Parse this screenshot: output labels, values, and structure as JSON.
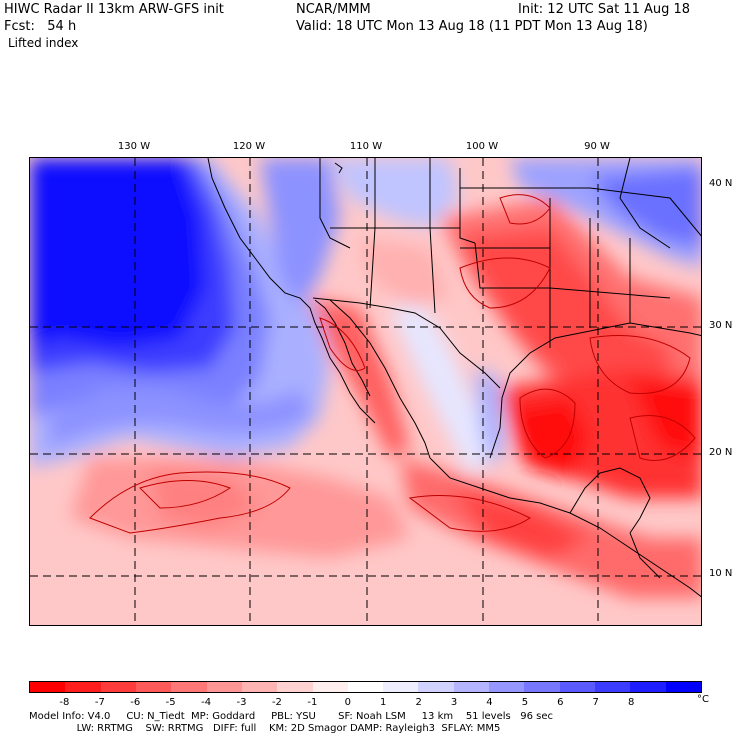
{
  "header": {
    "line1_left": "HIWC Radar II 13km ARW-GFS init",
    "line1_center": "NCAR/MMM",
    "line1_right": "Init: 12 UTC Sat 11 Aug 18",
    "line2_left": "Fcst:   54 h",
    "line2_right": "Valid: 18 UTC Mon 13 Aug 18 (11 PDT Mon 13 Aug 18)",
    "field": "Lifted index"
  },
  "map": {
    "lon_labels": [
      "130 W",
      "120 W",
      "110 W",
      "100 W",
      "90 W"
    ],
    "lat_labels": [
      "40 N",
      "30 N",
      "20 N",
      "10 N"
    ]
  },
  "colorbar": {
    "ticks": [
      "-8",
      "-7",
      "-6",
      "-5",
      "-4",
      "-3",
      "-2",
      "-1",
      "0",
      "1",
      "2",
      "3",
      "4",
      "5",
      "6",
      "7",
      "8"
    ],
    "unit": "°C",
    "colors": [
      "#ff0000",
      "#ff1e1e",
      "#ff3c3c",
      "#ff5a5a",
      "#ff7878",
      "#ff9696",
      "#ffb4b4",
      "#ffd2d2",
      "#ffeeee",
      "#ffffff",
      "#eeeeff",
      "#d2d2ff",
      "#b4b4ff",
      "#9696ff",
      "#7878ff",
      "#5a5aff",
      "#3c3cff",
      "#1e1eff",
      "#0000ff"
    ]
  },
  "footer": {
    "line1": "Model Info: V4.0     CU: N_Tiedt  MP: Goddard     PBL: YSU       SF: Noah LSM     13 km    51 levels   96 sec",
    "line2": "               LW: RRTMG    SW: RRTMG   DIFF: full    KM: 2D Smagor DAMP: Rayleigh3  SFLAY: MM5"
  }
}
